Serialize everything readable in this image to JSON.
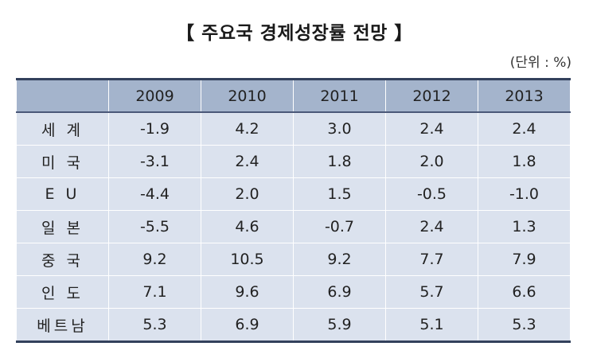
{
  "title": "【 주요국 경제성장률 전망 】",
  "unit": "(단위 : %)",
  "table": {
    "columns": [
      "",
      "2009",
      "2010",
      "2011",
      "2012",
      "2013"
    ],
    "rows": [
      {
        "label": "세  계",
        "values": [
          "-1.9",
          "4.2",
          "3.0",
          "2.4",
          "2.4"
        ]
      },
      {
        "label": "미  국",
        "values": [
          "-3.1",
          "2.4",
          "1.8",
          "2.0",
          "1.8"
        ]
      },
      {
        "label": "E  U",
        "values": [
          "-4.4",
          "2.0",
          "1.5",
          "-0.5",
          "-1.0"
        ]
      },
      {
        "label": "일  본",
        "values": [
          "-5.5",
          "4.6",
          "-0.7",
          "2.4",
          "1.3"
        ]
      },
      {
        "label": "중  국",
        "values": [
          "9.2",
          "10.5",
          "9.2",
          "7.7",
          "7.9"
        ]
      },
      {
        "label": "인  도",
        "values": [
          "7.1",
          "9.6",
          "6.9",
          "5.7",
          "6.6"
        ]
      },
      {
        "label": "베트남",
        "values": [
          "5.3",
          "6.9",
          "5.9",
          "5.1",
          "5.3"
        ]
      }
    ]
  },
  "colors": {
    "header_bg": "#a4b4cc",
    "body_bg": "#dbe2ee",
    "rule": "#33415c"
  }
}
